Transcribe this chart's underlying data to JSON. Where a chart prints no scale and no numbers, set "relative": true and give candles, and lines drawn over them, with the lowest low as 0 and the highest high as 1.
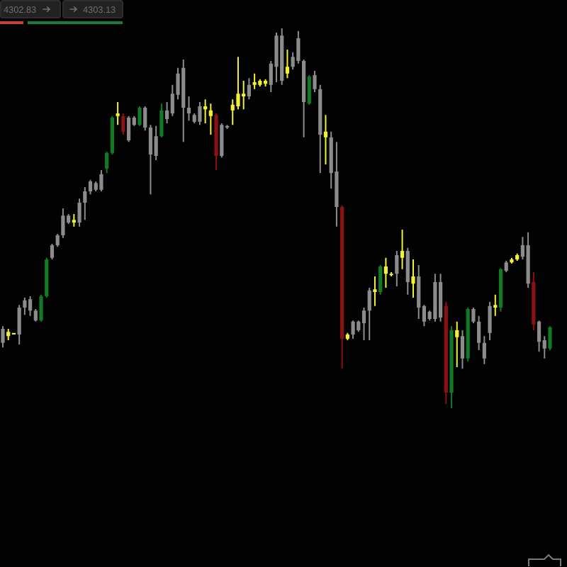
{
  "chart_data": {
    "type": "candlestick",
    "relative": true,
    "categories": [
      null,
      null,
      null,
      null,
      null,
      null,
      null,
      null,
      null,
      null,
      null,
      null,
      null,
      null,
      null,
      null,
      null,
      null,
      null,
      null,
      null,
      null,
      null,
      null,
      null,
      null,
      null,
      null,
      null,
      null,
      null,
      null,
      null,
      null,
      null,
      null,
      null,
      null,
      null,
      null,
      null,
      null,
      null,
      null,
      null,
      null,
      null,
      null,
      null,
      null,
      null,
      null,
      null,
      null,
      null,
      null,
      null,
      null,
      null,
      null,
      null,
      null,
      null,
      null,
      null,
      null,
      null,
      null,
      null,
      null,
      null,
      null,
      null,
      null,
      null,
      null,
      null,
      null,
      null,
      null,
      null,
      null,
      null,
      null,
      null,
      null,
      null,
      null,
      null,
      null,
      null,
      null,
      null,
      null,
      null,
      null,
      null,
      null,
      null,
      null,
      null
    ],
    "ohlc": [
      [
        0.172,
        0.216,
        0.16,
        0.209
      ],
      [
        0.201,
        0.209,
        0.179,
        0.19
      ],
      [
        0.198,
        0.198,
        0.194,
        0.194
      ],
      [
        0.194,
        0.272,
        0.168,
        0.265
      ],
      [
        0.265,
        0.291,
        0.246,
        0.284
      ],
      [
        0.257,
        0.295,
        0.243,
        0.287
      ],
      [
        0.231,
        0.261,
        0.228,
        0.257
      ],
      [
        0.231,
        0.299,
        0.228,
        0.295
      ],
      [
        0.295,
        0.396,
        0.291,
        0.392
      ],
      [
        0.396,
        0.433,
        0.392,
        0.429
      ],
      [
        0.429,
        0.459,
        0.425,
        0.455
      ],
      [
        0.455,
        0.526,
        0.448,
        0.507
      ],
      [
        0.489,
        0.511,
        0.485,
        0.507
      ],
      [
        0.496,
        0.511,
        0.478,
        0.489
      ],
      [
        0.489,
        0.552,
        0.478,
        0.541
      ],
      [
        0.541,
        0.582,
        0.496,
        0.571
      ],
      [
        0.571,
        0.601,
        0.563,
        0.597
      ],
      [
        0.575,
        0.597,
        0.571,
        0.593
      ],
      [
        0.575,
        0.627,
        0.571,
        0.616
      ],
      [
        0.631,
        0.675,
        0.619,
        0.672
      ],
      [
        0.672,
        0.769,
        0.668,
        0.765
      ],
      [
        0.776,
        0.806,
        0.746,
        0.769
      ],
      [
        0.769,
        0.776,
        0.72,
        0.728
      ],
      [
        0.705,
        0.769,
        0.701,
        0.765
      ],
      [
        0.746,
        0.769,
        0.743,
        0.765
      ],
      [
        0.746,
        0.795,
        0.743,
        0.791
      ],
      [
        0.739,
        0.795,
        0.731,
        0.791
      ],
      [
        0.668,
        0.746,
        0.563,
        0.739
      ],
      [
        0.664,
        0.743,
        0.653,
        0.716
      ],
      [
        0.716,
        0.802,
        0.713,
        0.784
      ],
      [
        0.761,
        0.806,
        0.75,
        0.784
      ],
      [
        0.776,
        0.851,
        0.769,
        0.828
      ],
      [
        0.825,
        0.896,
        0.813,
        0.881
      ],
      [
        0.791,
        0.918,
        0.701,
        0.896
      ],
      [
        0.776,
        0.821,
        0.757,
        0.791
      ],
      [
        0.754,
        0.776,
        0.75,
        0.772
      ],
      [
        0.754,
        0.806,
        0.746,
        0.795
      ],
      [
        0.795,
        0.813,
        0.75,
        0.787
      ],
      [
        0.784,
        0.802,
        0.72,
        0.769
      ],
      [
        0.772,
        0.776,
        0.627,
        0.664
      ],
      [
        0.664,
        0.75,
        0.66,
        0.746
      ],
      [
        0.739,
        0.746,
        0.735,
        0.743
      ],
      [
        0.799,
        0.813,
        0.746,
        0.784
      ],
      [
        0.828,
        0.925,
        0.787,
        0.795
      ],
      [
        0.828,
        0.862,
        0.787,
        0.821
      ],
      [
        0.821,
        0.869,
        0.813,
        0.851
      ],
      [
        0.858,
        0.881,
        0.84,
        0.851
      ],
      [
        0.862,
        0.866,
        0.847,
        0.851
      ],
      [
        0.862,
        0.866,
        0.847,
        0.854
      ],
      [
        0.851,
        0.914,
        0.832,
        0.907
      ],
      [
        0.899,
        0.989,
        0.858,
        0.981
      ],
      [
        0.862,
        1,
        0.851,
        0.981
      ],
      [
        0.899,
        0.944,
        0.869,
        0.881
      ],
      [
        0.899,
        0.937,
        0.892,
        0.925
      ],
      [
        0.914,
        0.993,
        0.907,
        0.974
      ],
      [
        0.806,
        0.918,
        0.713,
        0.914
      ],
      [
        0.802,
        0.877,
        0.799,
        0.873
      ],
      [
        0.84,
        0.888,
        0.832,
        0.877
      ],
      [
        0.72,
        0.851,
        0.619,
        0.84
      ],
      [
        0.728,
        0.772,
        0.642,
        0.713
      ],
      [
        0.619,
        0.728,
        0.578,
        0.713
      ],
      [
        0.53,
        0.701,
        0.478,
        0.623
      ],
      [
        0.53,
        0.534,
        0.104,
        0.183
      ],
      [
        0.194,
        0.198,
        0.179,
        0.183
      ],
      [
        0.194,
        0.231,
        0.183,
        0.228
      ],
      [
        0.205,
        0.231,
        0.201,
        0.228
      ],
      [
        0.224,
        0.265,
        0.179,
        0.257
      ],
      [
        0.257,
        0.317,
        0.179,
        0.31
      ],
      [
        0.313,
        0.347,
        0.269,
        0.306
      ],
      [
        0.306,
        0.377,
        0.299,
        0.373
      ],
      [
        0.373,
        0.396,
        0.317,
        0.354
      ],
      [
        0.354,
        0.358,
        0.347,
        0.351
      ],
      [
        0.354,
        0.414,
        0.321,
        0.403
      ],
      [
        0.414,
        0.47,
        0.366,
        0.396
      ],
      [
        0.332,
        0.422,
        0.299,
        0.414
      ],
      [
        0.347,
        0.392,
        0.291,
        0.328
      ],
      [
        0.265,
        0.377,
        0.235,
        0.347
      ],
      [
        0.228,
        0.272,
        0.216,
        0.269
      ],
      [
        0.235,
        0.257,
        0.231,
        0.254
      ],
      [
        0.235,
        0.354,
        0.228,
        0.332
      ],
      [
        0.239,
        0.354,
        0.228,
        0.332
      ],
      [
        0.269,
        0.28,
        0.011,
        0.041
      ],
      [
        0.041,
        0.216,
        0,
        0.205
      ],
      [
        0.205,
        0.228,
        0.108,
        0.187
      ],
      [
        0.131,
        0.205,
        0.104,
        0.19
      ],
      [
        0.131,
        0.265,
        0.123,
        0.261
      ],
      [
        0.228,
        0.265,
        0.224,
        0.261
      ],
      [
        0.172,
        0.243,
        0.153,
        0.228
      ],
      [
        0.131,
        0.19,
        0.116,
        0.172
      ],
      [
        0.198,
        0.28,
        0.179,
        0.269
      ],
      [
        0.272,
        0.299,
        0.243,
        0.265
      ],
      [
        0.265,
        0.369,
        0.254,
        0.366
      ],
      [
        0.362,
        0.388,
        0.358,
        0.384
      ],
      [
        0.392,
        0.396,
        0.381,
        0.384
      ],
      [
        0.403,
        0.407,
        0.388,
        0.392
      ],
      [
        0.399,
        0.451,
        0.392,
        0.429
      ],
      [
        0.328,
        0.463,
        0.317,
        0.429
      ],
      [
        0.332,
        0.358,
        0.205,
        0.22
      ],
      [
        0.175,
        0.231,
        0.149,
        0.228
      ],
      [
        0.157,
        0.19,
        0.131,
        0.179
      ],
      [
        0.157,
        0.216,
        0.153,
        0.213
      ]
    ],
    "colors": [
      "#8c8c8c",
      "#f2f230",
      "#f2f230",
      "#8c8c8c",
      "#8c8c8c",
      "#8c8c8c",
      "#8c8c8c",
      "#127a22",
      "#127a22",
      "#8c8c8c",
      "#8c8c8c",
      "#8c8c8c",
      "#8c8c8c",
      "#f2f230",
      "#8c8c8c",
      "#8c8c8c",
      "#8c8c8c",
      "#8c8c8c",
      "#8c8c8c",
      "#127a22",
      "#127a22",
      "#f2f230",
      "#8a1212",
      "#8c8c8c",
      "#8c8c8c",
      "#127a22",
      "#8c8c8c",
      "#8c8c8c",
      "#8c8c8c",
      "#127a22",
      "#8c8c8c",
      "#8c8c8c",
      "#8c8c8c",
      "#8c8c8c",
      "#8c8c8c",
      "#8c8c8c",
      "#8c8c8c",
      "#f2f230",
      "#f2f230",
      "#8a1212",
      "#8c8c8c",
      "#8c8c8c",
      "#f2f230",
      "#f2f230",
      "#f2f230",
      "#8c8c8c",
      "#f2f230",
      "#f2f230",
      "#f2f230",
      "#8c8c8c",
      "#8c8c8c",
      "#8c8c8c",
      "#f2f230",
      "#8c8c8c",
      "#8c8c8c",
      "#8c8c8c",
      "#127a22",
      "#8c8c8c",
      "#8c8c8c",
      "#f2f230",
      "#8c8c8c",
      "#8c8c8c",
      "#8a1212",
      "#f2f230",
      "#8c8c8c",
      "#8c8c8c",
      "#8c8c8c",
      "#8c8c8c",
      "#f2f230",
      "#127a22",
      "#f2f230",
      "#f2f230",
      "#8c8c8c",
      "#f2f230",
      "#8c8c8c",
      "#f2f230",
      "#8c8c8c",
      "#8c8c8c",
      "#8c8c8c",
      "#8c8c8c",
      "#8c8c8c",
      "#8a1212",
      "#127a22",
      "#f2f230",
      "#8c8c8c",
      "#127a22",
      "#8c8c8c",
      "#8c8c8c",
      "#8c8c8c",
      "#8c8c8c",
      "#f2f230",
      "#127a22",
      "#8c8c8c",
      "#f2f230",
      "#f2f230",
      "#8c8c8c",
      "#8c8c8c",
      "#8a1212",
      "#8c8c8c",
      "#8c8c8c",
      "#127a22"
    ],
    "annotations": [
      "4302.83",
      "4303.13"
    ]
  }
}
